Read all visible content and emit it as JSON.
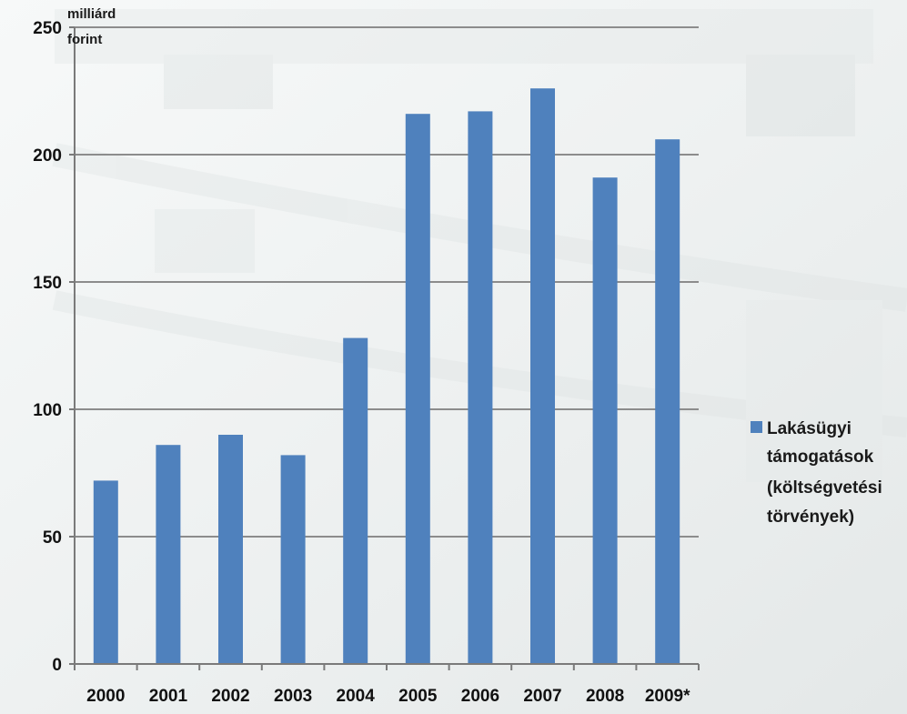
{
  "chart_data": {
    "type": "bar",
    "unit_label": [
      "milliárd",
      "forint"
    ],
    "categories": [
      "2000",
      "2001",
      "2002",
      "2003",
      "2004",
      "2005",
      "2006",
      "2007",
      "2008",
      "2009*"
    ],
    "series": [
      {
        "name": "Lakásügyi támogatások (költségvetési törvények)",
        "values": [
          72,
          86,
          90,
          82,
          128,
          216,
          217,
          226,
          191,
          206
        ],
        "color": "#4f81bd"
      }
    ],
    "ylim": [
      0,
      250
    ],
    "yticks": [
      0,
      50,
      100,
      150,
      200,
      250
    ],
    "grid": true,
    "legend_position": "right"
  },
  "legend": {
    "lines": [
      "Lakásügyi",
      "támogatások",
      "(költségvetési",
      "törvények)"
    ]
  }
}
